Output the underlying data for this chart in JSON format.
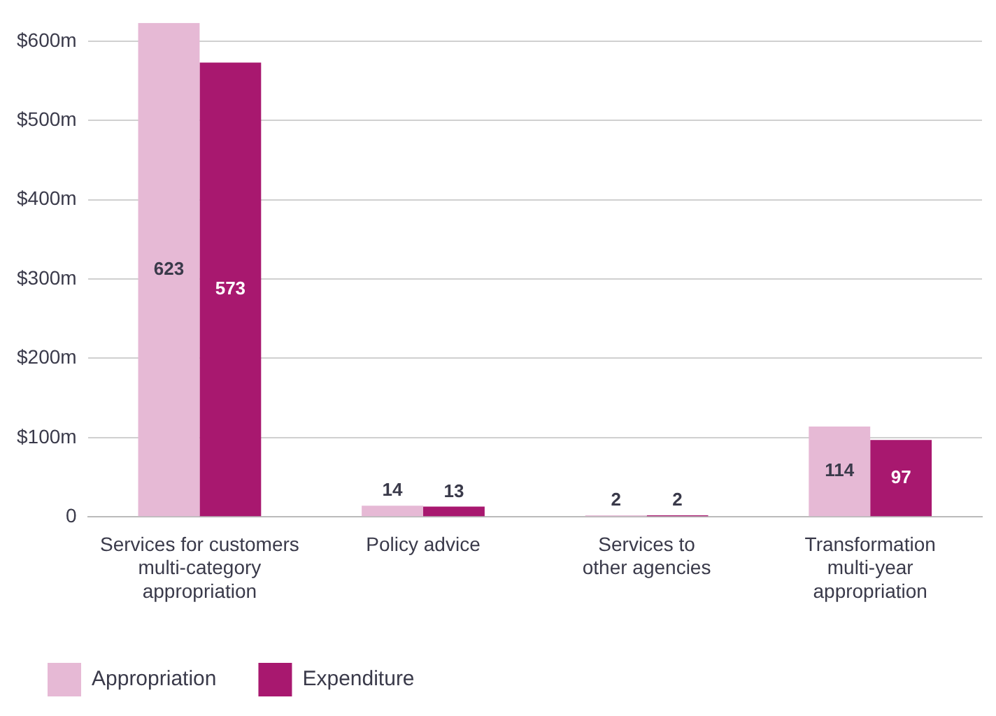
{
  "chart_data": {
    "type": "bar",
    "categories": [
      "Services for customers\nmulti-category\nappropriation",
      "Policy advice",
      "Services to\nother agencies",
      "Transformation\nmulti-year\nappropriation"
    ],
    "series": [
      {
        "name": "Appropriation",
        "color": "#e6b9d5",
        "values": [
          623,
          14,
          2,
          114
        ]
      },
      {
        "name": "Expenditure",
        "color": "#a8186f",
        "values": [
          573,
          13,
          2,
          97
        ]
      }
    ],
    "ylim": [
      0,
      623
    ],
    "yticks": [
      {
        "value": 0,
        "label": "0"
      },
      {
        "value": 100,
        "label": "$100m"
      },
      {
        "value": 200,
        "label": "$200m"
      },
      {
        "value": 300,
        "label": "$300m"
      },
      {
        "value": 400,
        "label": "$400m"
      },
      {
        "value": 500,
        "label": "$500m"
      },
      {
        "value": 600,
        "label": "$600m"
      }
    ],
    "grid": "y",
    "legend": "bottom left",
    "data_labels": true
  }
}
